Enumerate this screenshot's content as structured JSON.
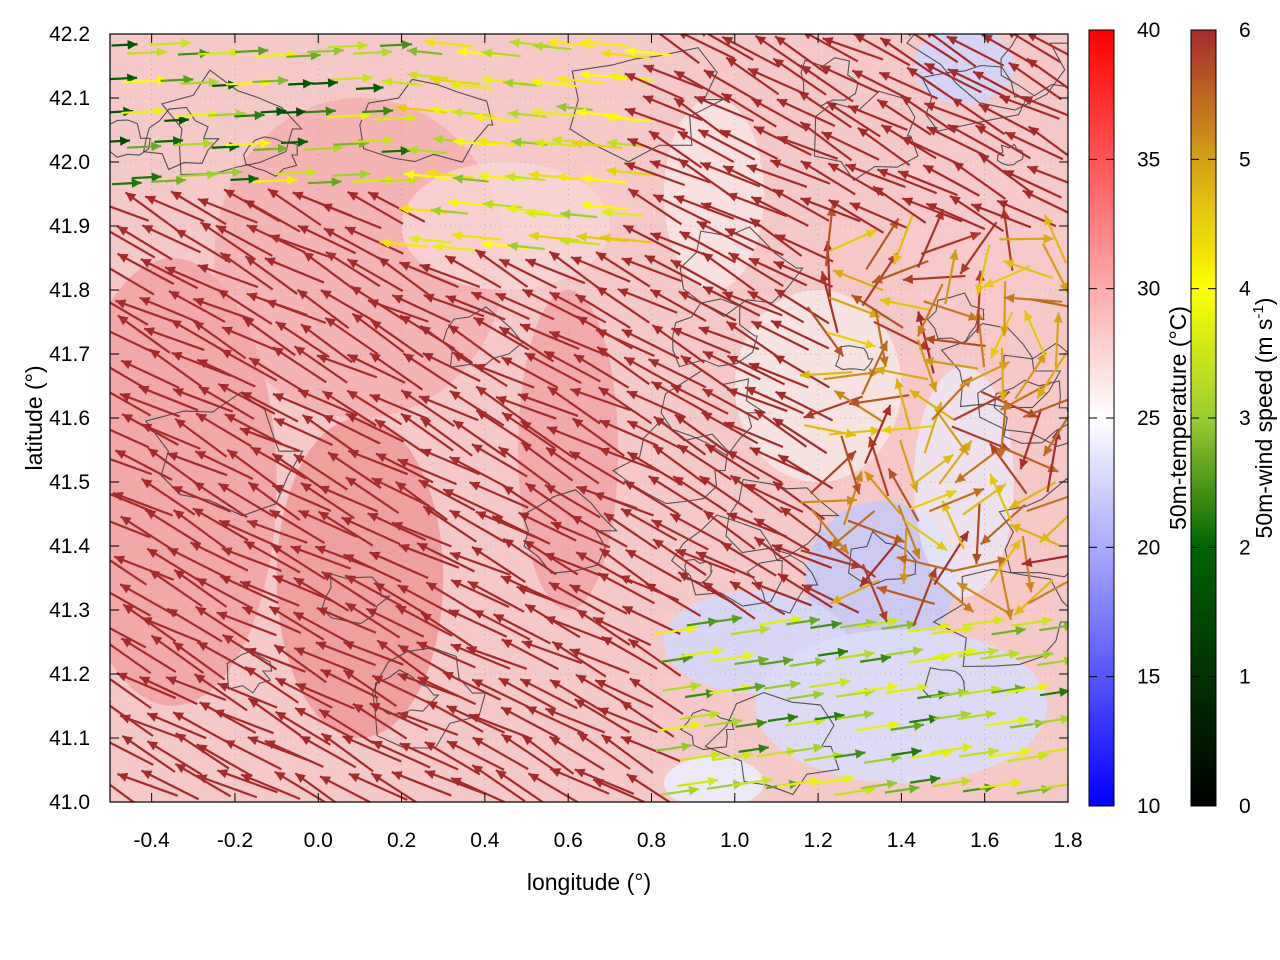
{
  "chart_data": {
    "type": "vector-field-heatmap",
    "xlabel": "longitude (°)",
    "ylabel": "latitude (°)",
    "xlim": [
      -0.5,
      1.8
    ],
    "ylim": [
      41.0,
      42.2
    ],
    "x_ticks": [
      "-0.4",
      "-0.2",
      "0.0",
      "0.2",
      "0.4",
      "0.6",
      "0.8",
      "1.0",
      "1.2",
      "1.4",
      "1.6",
      "1.8"
    ],
    "x_tick_values": [
      -0.4,
      -0.2,
      0.0,
      0.2,
      0.4,
      0.6,
      0.8,
      1.0,
      1.2,
      1.4,
      1.6,
      1.8
    ],
    "y_ticks": [
      "41.0",
      "41.1",
      "41.2",
      "41.3",
      "41.4",
      "41.5",
      "41.6",
      "41.7",
      "41.8",
      "41.9",
      "42.0",
      "42.1",
      "42.2"
    ],
    "y_tick_values": [
      41.0,
      41.1,
      41.2,
      41.3,
      41.4,
      41.5,
      41.6,
      41.7,
      41.8,
      41.9,
      42.0,
      42.1,
      42.2
    ],
    "grid": true,
    "temperature_colorbar": {
      "label": "50m-temperature (°C)",
      "range": [
        10,
        40
      ],
      "ticks": [
        "10",
        "15",
        "20",
        "25",
        "30",
        "35",
        "40"
      ],
      "tick_values": [
        10,
        15,
        20,
        25,
        30,
        35,
        40
      ],
      "colors": [
        "#0000ff",
        "#ffffff",
        "#ff0000"
      ]
    },
    "wind_colorbar": {
      "label_prefix": "50m-wind speed (m s",
      "label_sup": "-1",
      "label_suffix": ")",
      "range": [
        0,
        6
      ],
      "ticks": [
        "0",
        "1",
        "2",
        "3",
        "4",
        "5",
        "6"
      ],
      "tick_values": [
        0,
        1,
        2,
        3,
        4,
        5,
        6
      ],
      "colors": [
        "#000000",
        "#006400",
        "#9acd32",
        "#ffff00",
        "#d4a017",
        "#b8651e",
        "#a52a2a"
      ]
    },
    "temperature_field_notes": "warm (28-35 °C) over land west of 0.7°E; cool (18-24 °C) over sea east of 1.0°E south of 41.6°N",
    "wind_field_notes": "strong (6 m/s) north-westward flow over central region; weak (2-4 m/s) eastward flow along southern coast and north-west corner"
  }
}
